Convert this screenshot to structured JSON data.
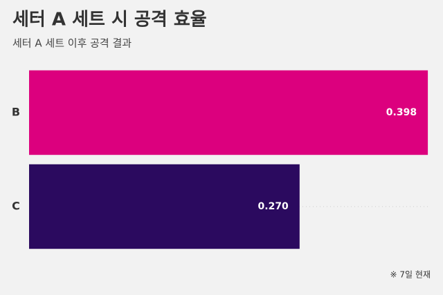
{
  "chart_data": {
    "type": "bar",
    "orientation": "horizontal",
    "title": "세터 A 세트 시 공격 효율",
    "subtitle": "세터 A 세트 이후 공격 결과",
    "categories": [
      "B",
      "C"
    ],
    "values": [
      0.398,
      0.27
    ],
    "value_labels": [
      "0.398",
      "0.270"
    ],
    "colors": [
      "#dc007e",
      "#2b0a5f"
    ],
    "xlim": [
      0,
      0.4
    ],
    "note": "※ 7일 현재"
  }
}
